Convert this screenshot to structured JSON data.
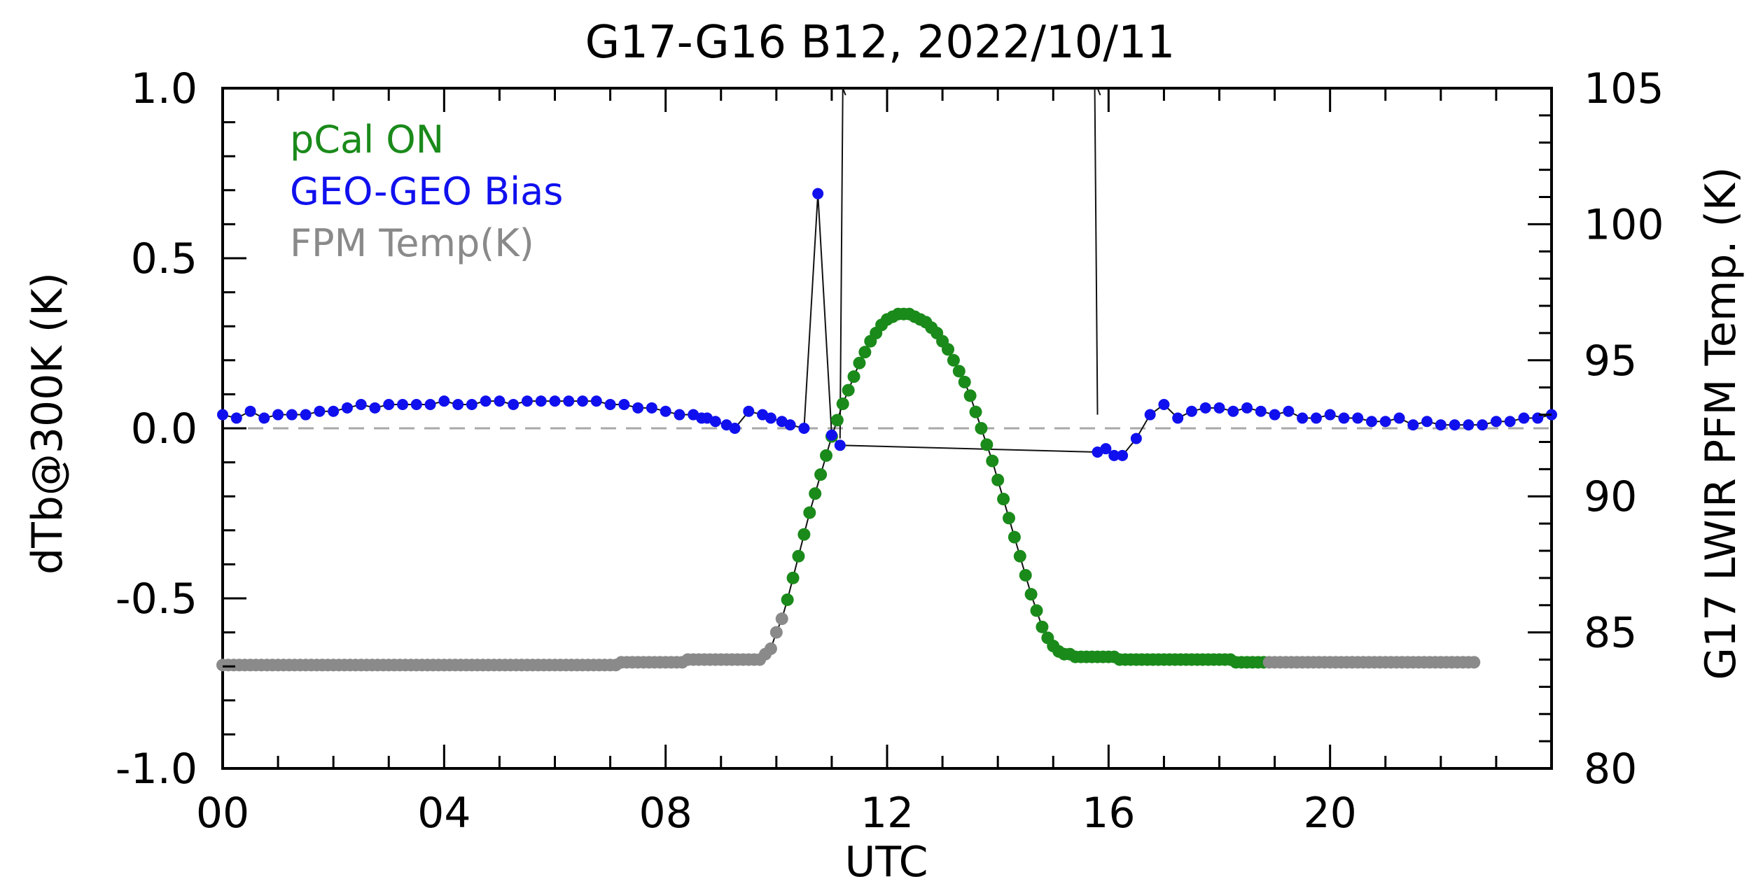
{
  "chart_data": {
    "type": "scatter",
    "title": "G17-G16 B12, 2022/10/11",
    "xlabel": "UTC",
    "ylabel_left": "dTb@300K (K)",
    "ylabel_right": "G17 LWIR PFM Temp. (K)",
    "x_range_hours": [
      0,
      24
    ],
    "x_ticks": [
      {
        "value": 0,
        "label": "00"
      },
      {
        "value": 4,
        "label": "04"
      },
      {
        "value": 8,
        "label": "08"
      },
      {
        "value": 12,
        "label": "12"
      },
      {
        "value": 16,
        "label": "16"
      },
      {
        "value": 20,
        "label": "20"
      }
    ],
    "ylim_left": [
      -1.0,
      1.0
    ],
    "y_ticks_left": [
      {
        "value": 1.0,
        "label": "1.0"
      },
      {
        "value": 0.5,
        "label": "0.5"
      },
      {
        "value": 0.0,
        "label": "0.0"
      },
      {
        "value": -0.5,
        "label": "-0.5"
      },
      {
        "value": -1.0,
        "label": "-1.0"
      }
    ],
    "ylim_right": [
      80,
      105
    ],
    "y_ticks_right": [
      {
        "value": 105,
        "label": "105"
      },
      {
        "value": 100,
        "label": "100"
      },
      {
        "value": 95,
        "label": "95"
      },
      {
        "value": 90,
        "label": "90"
      },
      {
        "value": 85,
        "label": "85"
      },
      {
        "value": 80,
        "label": "80"
      }
    ],
    "zero_reference_line": 0.0,
    "legend": {
      "placement": "top-left",
      "entries": [
        {
          "label": "pCal ON",
          "color": "#1a8a1a"
        },
        {
          "label": "GEO-GEO Bias",
          "color": "#1010ee"
        },
        {
          "label": "FPM Temp(K)",
          "color": "#8a8a8a"
        }
      ]
    },
    "series": [
      {
        "name": "GEO-GEO Bias",
        "axis": "left",
        "color": "#1010ee",
        "x": [
          0.0,
          0.25,
          0.5,
          0.75,
          1.0,
          1.25,
          1.5,
          1.75,
          2.0,
          2.25,
          2.5,
          2.75,
          3.0,
          3.25,
          3.5,
          3.75,
          4.0,
          4.25,
          4.5,
          4.75,
          5.0,
          5.25,
          5.5,
          5.75,
          6.0,
          6.25,
          6.5,
          6.75,
          7.0,
          7.25,
          7.5,
          7.75,
          8.0,
          8.25,
          8.5,
          8.65,
          8.75,
          8.9,
          9.1,
          9.25,
          9.5,
          9.75,
          9.9,
          10.1,
          10.25,
          10.5,
          10.75,
          11.0,
          11.15,
          15.8,
          15.95,
          16.1,
          16.25,
          16.5,
          16.75,
          17.0,
          17.25,
          17.5,
          17.75,
          18.0,
          18.25,
          18.5,
          18.75,
          19.0,
          19.25,
          19.5,
          19.75,
          20.0,
          20.25,
          20.5,
          20.75,
          21.0,
          21.25,
          21.5,
          21.75,
          22.0,
          22.25,
          22.5,
          22.75,
          23.0,
          23.25,
          23.5,
          23.75,
          24.0
        ],
        "values": [
          0.04,
          0.03,
          0.05,
          0.03,
          0.04,
          0.04,
          0.04,
          0.05,
          0.05,
          0.06,
          0.07,
          0.06,
          0.07,
          0.07,
          0.07,
          0.07,
          0.08,
          0.07,
          0.07,
          0.08,
          0.08,
          0.07,
          0.08,
          0.08,
          0.08,
          0.08,
          0.08,
          0.08,
          0.07,
          0.07,
          0.06,
          0.06,
          0.05,
          0.04,
          0.04,
          0.03,
          0.03,
          0.02,
          0.01,
          0.0,
          0.05,
          0.04,
          0.03,
          0.02,
          0.01,
          0.0,
          0.69,
          -0.02,
          -0.05,
          -0.07,
          -0.06,
          -0.08,
          -0.08,
          -0.03,
          0.04,
          0.07,
          0.03,
          0.05,
          0.06,
          0.06,
          0.05,
          0.06,
          0.05,
          0.04,
          0.05,
          0.03,
          0.03,
          0.04,
          0.03,
          0.03,
          0.02,
          0.02,
          0.03,
          0.01,
          0.02,
          0.01,
          0.01,
          0.01,
          0.01,
          0.02,
          0.02,
          0.03,
          0.03,
          0.04
        ]
      },
      {
        "name": "FPM Temp(K) / pCal ON",
        "axis": "right",
        "note": "green points where pCal is ON, gray otherwise",
        "x_start_hour": 0,
        "x_step_hours": 0.1,
        "values_K": [
          83.8,
          83.8,
          83.8,
          83.8,
          83.8,
          83.8,
          83.8,
          83.8,
          83.8,
          83.8,
          83.8,
          83.8,
          83.8,
          83.8,
          83.8,
          83.8,
          83.8,
          83.8,
          83.8,
          83.8,
          83.8,
          83.8,
          83.8,
          83.8,
          83.8,
          83.8,
          83.8,
          83.8,
          83.8,
          83.8,
          83.8,
          83.8,
          83.8,
          83.8,
          83.8,
          83.8,
          83.8,
          83.8,
          83.8,
          83.8,
          83.8,
          83.8,
          83.8,
          83.8,
          83.8,
          83.8,
          83.8,
          83.8,
          83.8,
          83.8,
          83.8,
          83.8,
          83.8,
          83.8,
          83.8,
          83.8,
          83.8,
          83.8,
          83.8,
          83.8,
          83.8,
          83.8,
          83.8,
          83.8,
          83.8,
          83.8,
          83.8,
          83.8,
          83.8,
          83.8,
          83.8,
          83.8,
          83.9,
          83.9,
          83.9,
          83.9,
          83.9,
          83.9,
          83.9,
          83.9,
          83.9,
          83.9,
          83.9,
          83.9,
          84.0,
          84.0,
          84.0,
          84.0,
          84.0,
          84.0,
          84.0,
          84.0,
          84.0,
          84.0,
          84.0,
          84.0,
          84.0,
          84.0,
          84.2,
          84.4,
          85.0,
          85.5,
          86.2,
          87.0,
          87.8,
          88.6,
          89.4,
          90.1,
          90.8,
          91.5,
          92.2,
          92.8,
          93.4,
          93.9,
          94.4,
          94.9,
          95.3,
          95.7,
          96.0,
          96.3,
          96.5,
          96.6,
          96.7,
          96.7,
          96.7,
          96.6,
          96.5,
          96.4,
          96.2,
          96.0,
          95.7,
          95.4,
          95.0,
          94.6,
          94.2,
          93.7,
          93.1,
          92.5,
          91.9,
          91.3,
          90.6,
          89.9,
          89.2,
          88.5,
          87.8,
          87.1,
          86.4,
          85.8,
          85.2,
          84.8,
          84.5,
          84.3,
          84.2,
          84.2,
          84.1,
          84.1,
          84.1,
          84.1,
          84.1,
          84.1,
          84.1,
          84.1,
          84.0,
          84.0,
          84.0,
          84.0,
          84.0,
          84.0,
          84.0,
          84.0,
          84.0,
          84.0,
          84.0,
          84.0,
          84.0,
          84.0,
          84.0,
          84.0,
          84.0,
          84.0,
          84.0,
          84.0,
          84.0,
          83.9,
          83.9,
          83.9,
          83.9,
          83.9,
          83.9,
          83.9,
          83.9,
          83.9,
          83.9,
          83.9,
          83.9,
          83.9,
          83.9,
          83.9,
          83.9,
          83.9,
          83.9,
          83.9,
          83.9,
          83.9,
          83.9,
          83.9,
          83.9,
          83.9,
          83.9,
          83.9,
          83.9,
          83.9,
          83.9,
          83.9,
          83.9,
          83.9,
          83.9,
          83.9,
          83.9,
          83.9,
          83.9,
          83.9,
          83.9,
          83.9,
          83.9,
          83.9,
          83.9
        ],
        "pcal_on_hours": [
          10.0,
          18.8
        ]
      }
    ],
    "connector_spikes_hours": [
      11.2,
      15.8
    ]
  }
}
